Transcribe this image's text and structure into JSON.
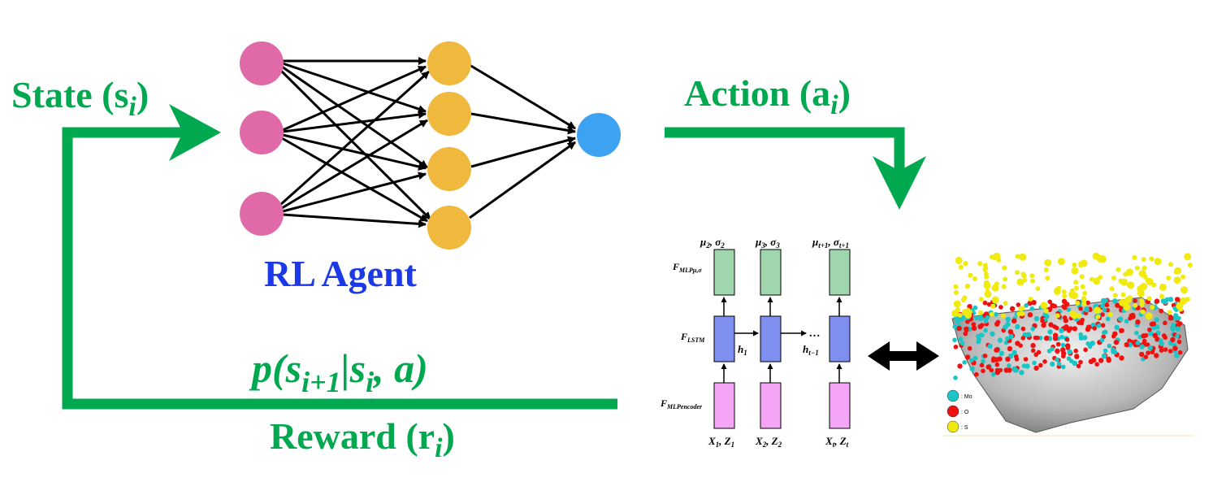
{
  "labels": {
    "state": "State (s",
    "state_sub": "i",
    "state_close": ")",
    "action": "Action (a",
    "action_sub": "i",
    "action_close": ")",
    "agent": "RL Agent",
    "transition": "p(s",
    "transition_sub1": "i+1",
    "transition_mid": "|s",
    "transition_sub2": "i",
    "transition_end": ", a)",
    "reward": "Reward (r",
    "reward_sub": "i",
    "reward_close": ")"
  },
  "lstm": {
    "top_labels": [
      "μ",
      "μ",
      "μ"
    ],
    "top_subs": [
      "2",
      "3",
      "t+1"
    ],
    "top_sigmas": [
      "σ",
      "σ",
      "σ"
    ],
    "top_sigma_subs": [
      "2",
      "3",
      "t+1"
    ],
    "row_labels": [
      "F",
      "F",
      "F"
    ],
    "row_subs": [
      "MLPμ,σ",
      "LSTM",
      "MLPencoder"
    ],
    "hidden_labels": [
      "h",
      "h"
    ],
    "hidden_subs": [
      "1",
      "t−1"
    ],
    "ellipsis": "…",
    "inputs": [
      "X",
      "X",
      "X"
    ],
    "input_subs": [
      "1",
      "2",
      "t"
    ],
    "inputs_z": [
      "Z",
      "Z",
      "Z"
    ],
    "input_z_subs": [
      "1",
      "2",
      "t"
    ]
  },
  "legend": {
    "items": [
      {
        "label": ": Mo",
        "color": "#19c5c5"
      },
      {
        "label": ": O",
        "color": "#ee1111"
      },
      {
        "label": ": S",
        "color": "#f0ea10"
      }
    ]
  },
  "colors": {
    "green": "#00a94f",
    "input_node": "#e06aa8",
    "hidden_node": "#f0b93e",
    "output_node": "#3ea2f2",
    "agent_text": "#1b39e6",
    "mlp_top": "#9fd6ad",
    "lstm": "#7f8ff0",
    "mlp_bottom": "#f5a5f5"
  }
}
